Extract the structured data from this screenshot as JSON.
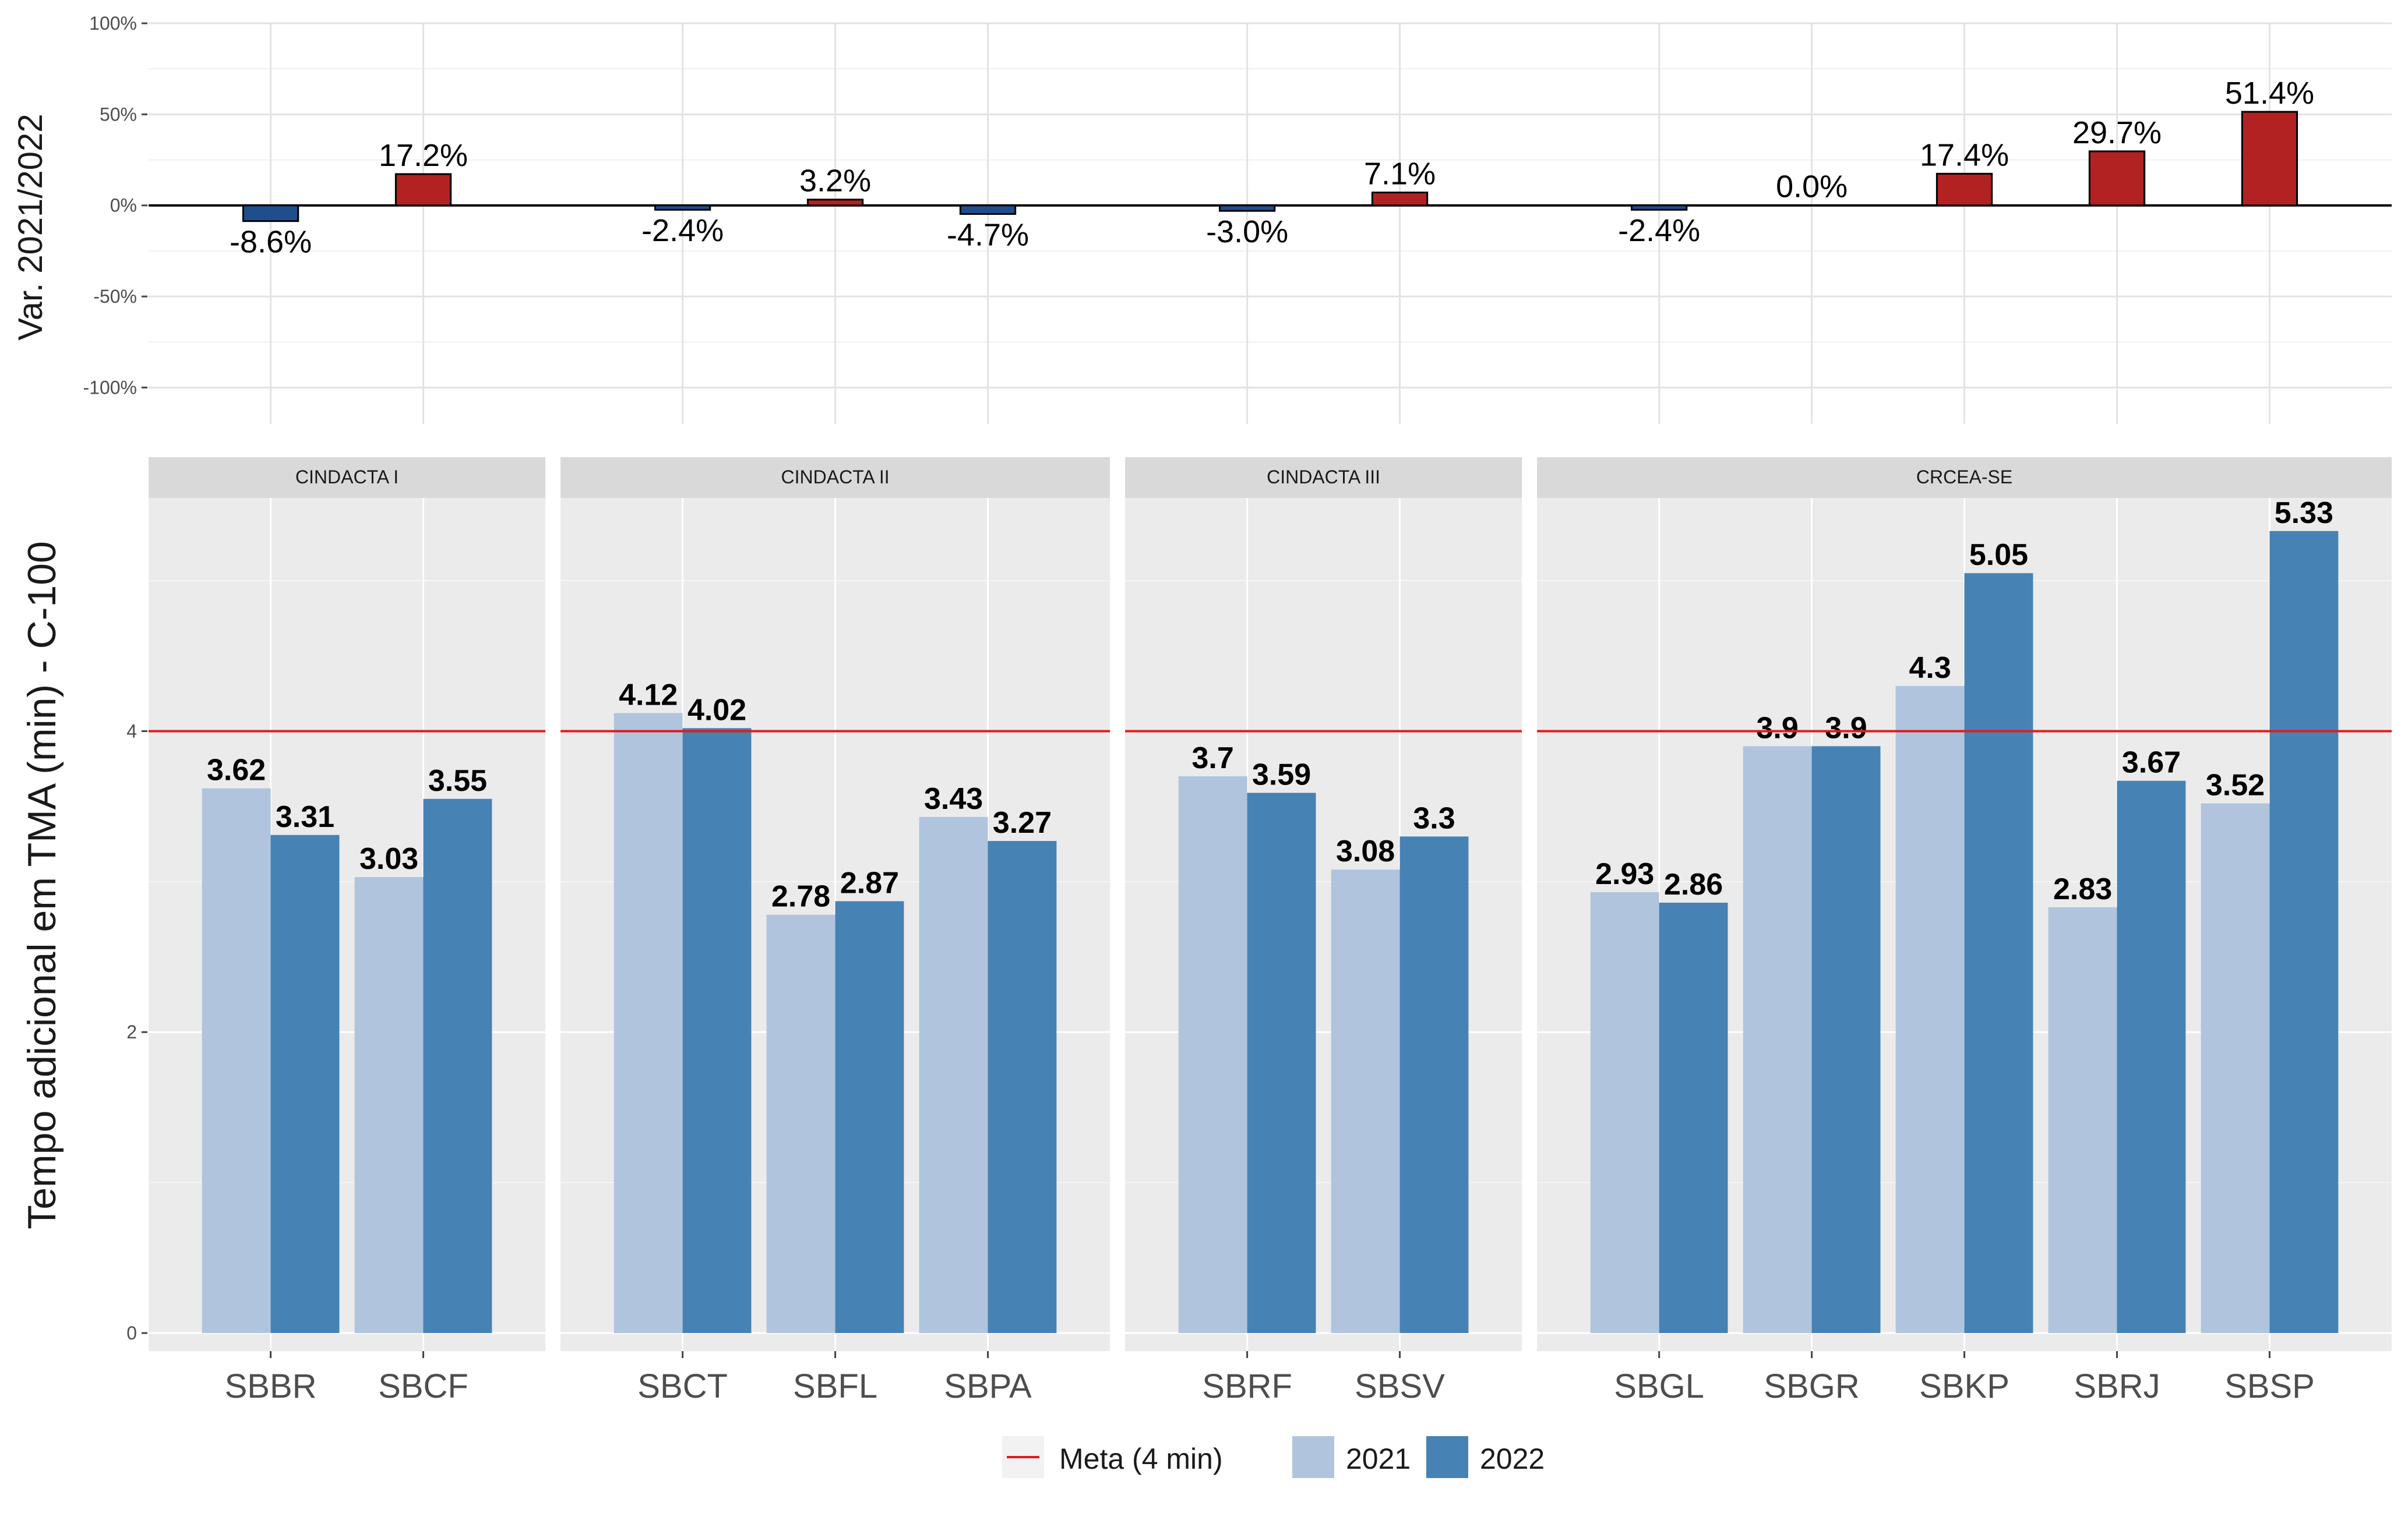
{
  "chart_data": [
    {
      "type": "bar",
      "panel": "variation",
      "ylabel": "Var. 2021/2022",
      "ylim": [
        -1.2,
        1.0
      ],
      "y_ticks": [
        "100%",
        "50%",
        "0%",
        "-50%",
        "-100%"
      ],
      "y_tick_values": [
        1.0,
        0.5,
        0.0,
        -0.5,
        -1.0
      ],
      "categories": [
        "SBBR",
        "SBCF",
        "SBCT",
        "SBFL",
        "SBPA",
        "SBRF",
        "SBSV",
        "SBGL",
        "SBGR",
        "SBKP",
        "SBRJ",
        "SBSP"
      ],
      "values": [
        -0.086,
        0.172,
        -0.024,
        0.032,
        -0.047,
        -0.03,
        0.071,
        -0.024,
        0.0,
        0.174,
        0.297,
        0.514
      ],
      "labels": [
        "-8.6%",
        "17.2%",
        "-2.4%",
        "3.2%",
        "-4.7%",
        "-3.0%",
        "7.1%",
        "-2.4%",
        "0.0%",
        "17.4%",
        "29.7%",
        "51.4%"
      ],
      "colors": {
        "negative": "#1F4E8C",
        "positive": "#B22222"
      },
      "grid": true
    },
    {
      "type": "bar",
      "panel": "faceted",
      "ylabel": "Tempo adicional em TMA (min) - C-100",
      "ylim": [
        -0.12,
        5.55
      ],
      "y_ticks": [
        "0",
        "2",
        "4"
      ],
      "y_tick_values": [
        0,
        2,
        4
      ],
      "facets": [
        {
          "name": "CINDACTA I",
          "categories": [
            "SBBR",
            "SBCF"
          ]
        },
        {
          "name": "CINDACTA II",
          "categories": [
            "SBCT",
            "SBFL",
            "SBPA"
          ]
        },
        {
          "name": "CINDACTA III",
          "categories": [
            "SBRF",
            "SBSV"
          ]
        },
        {
          "name": "CRCEA-SE",
          "categories": [
            "SBGL",
            "SBGR",
            "SBKP",
            "SBRJ",
            "SBSP"
          ]
        }
      ],
      "categories": [
        "SBBR",
        "SBCF",
        "SBCT",
        "SBFL",
        "SBPA",
        "SBRF",
        "SBSV",
        "SBGL",
        "SBGR",
        "SBKP",
        "SBRJ",
        "SBSP"
      ],
      "series": [
        {
          "name": "2021",
          "color": "#B0C4DE",
          "values": [
            3.62,
            3.03,
            4.12,
            2.78,
            3.43,
            3.7,
            3.08,
            2.93,
            3.9,
            4.3,
            2.83,
            3.52
          ],
          "labels": [
            "3.62",
            "3.03",
            "4.12",
            "2.78",
            "3.43",
            "3.7",
            "3.08",
            "2.93",
            "3.9",
            "4.3",
            "2.83",
            "3.52"
          ]
        },
        {
          "name": "2022",
          "color": "#4682B4",
          "values": [
            3.31,
            3.55,
            4.02,
            2.87,
            3.27,
            3.59,
            3.3,
            2.86,
            3.9,
            5.05,
            3.67,
            5.33
          ],
          "labels": [
            "3.31",
            "3.55",
            "4.02",
            "2.87",
            "3.27",
            "3.59",
            "3.3",
            "2.86",
            "3.9",
            "5.05",
            "3.67",
            "5.33"
          ]
        }
      ],
      "reference_line": {
        "value": 4,
        "label": "Meta (4 min)",
        "color": "#E31A1C"
      },
      "legend_position": "bottom",
      "grid": true
    }
  ],
  "legend": {
    "items": [
      {
        "label": "Meta (4 min)",
        "kind": "line",
        "color": "#E31A1C"
      },
      {
        "label": "2021",
        "kind": "fill",
        "color": "#B0C4DE"
      },
      {
        "label": "2022",
        "kind": "fill",
        "color": "#4682B4"
      }
    ]
  }
}
